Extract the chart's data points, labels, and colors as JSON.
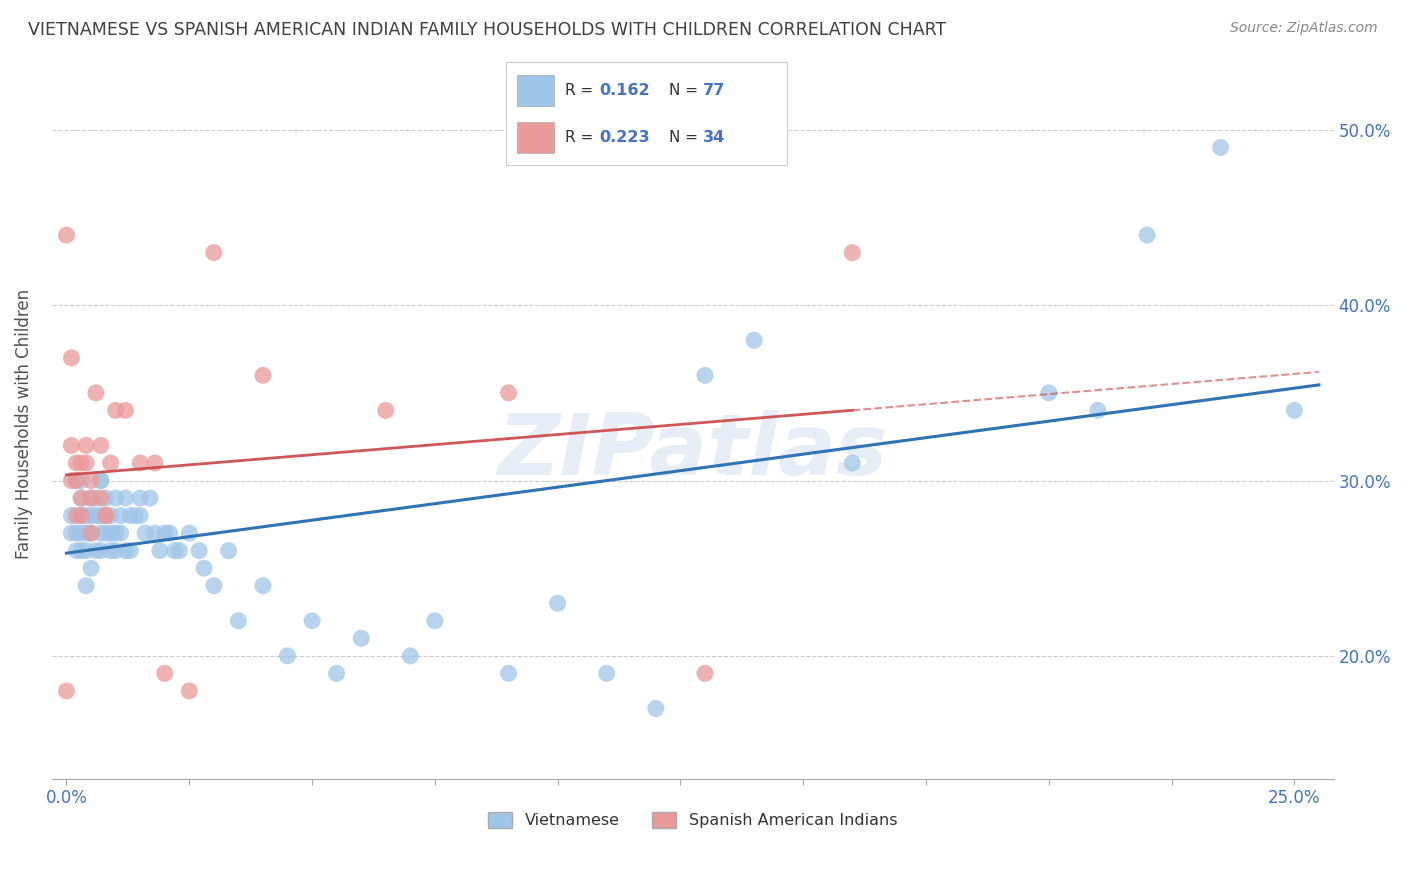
{
  "title": "VIETNAMESE VS SPANISH AMERICAN INDIAN FAMILY HOUSEHOLDS WITH CHILDREN CORRELATION CHART",
  "source": "Source: ZipAtlas.com",
  "ylabel": "Family Households with Children",
  "watermark": "ZIPatlas",
  "right_ytick_labels": [
    "20.0%",
    "30.0%",
    "40.0%",
    "50.0%"
  ],
  "right_yticks": [
    0.2,
    0.3,
    0.4,
    0.5
  ],
  "xtick_labels_shown": [
    "0.0%",
    "25.0%"
  ],
  "xticks_shown": [
    0.0,
    0.25
  ],
  "xticks_minor": [
    0.025,
    0.05,
    0.075,
    0.1,
    0.125,
    0.15,
    0.175,
    0.2,
    0.225
  ],
  "xlim": [
    -0.003,
    0.258
  ],
  "ylim": [
    0.13,
    0.535
  ],
  "blue_color": "#9fc5e8",
  "pink_color": "#ea9999",
  "blue_line_color": "#2e74b5",
  "pink_line_color": "#cc4444",
  "title_color": "#404040",
  "axis_label_color": "#4472c4",
  "grid_color": "#cccccc",
  "background_color": "#ffffff",
  "legend_blue_label": "R = 0.162   N = 77",
  "legend_pink_label": "R = 0.223   N = 34",
  "bottom_legend": [
    "Vietnamese",
    "Spanish American Indians"
  ],
  "vietnamese_x": [
    0.001,
    0.001,
    0.002,
    0.002,
    0.002,
    0.003,
    0.003,
    0.003,
    0.003,
    0.003,
    0.004,
    0.004,
    0.004,
    0.004,
    0.005,
    0.005,
    0.005,
    0.005,
    0.006,
    0.006,
    0.006,
    0.007,
    0.007,
    0.007,
    0.007,
    0.007,
    0.008,
    0.008,
    0.008,
    0.009,
    0.009,
    0.009,
    0.01,
    0.01,
    0.01,
    0.011,
    0.011,
    0.012,
    0.012,
    0.013,
    0.013,
    0.014,
    0.015,
    0.015,
    0.016,
    0.017,
    0.018,
    0.019,
    0.02,
    0.021,
    0.022,
    0.023,
    0.025,
    0.027,
    0.028,
    0.03,
    0.033,
    0.035,
    0.04,
    0.045,
    0.05,
    0.055,
    0.06,
    0.07,
    0.075,
    0.09,
    0.1,
    0.11,
    0.12,
    0.13,
    0.14,
    0.16,
    0.2,
    0.21,
    0.22,
    0.235,
    0.25
  ],
  "vietnamese_y": [
    0.28,
    0.27,
    0.3,
    0.27,
    0.26,
    0.3,
    0.28,
    0.26,
    0.29,
    0.27,
    0.28,
    0.27,
    0.26,
    0.24,
    0.29,
    0.28,
    0.27,
    0.25,
    0.29,
    0.28,
    0.26,
    0.3,
    0.28,
    0.27,
    0.26,
    0.3,
    0.29,
    0.28,
    0.27,
    0.28,
    0.27,
    0.26,
    0.29,
    0.27,
    0.26,
    0.28,
    0.27,
    0.29,
    0.26,
    0.28,
    0.26,
    0.28,
    0.29,
    0.28,
    0.27,
    0.29,
    0.27,
    0.26,
    0.27,
    0.27,
    0.26,
    0.26,
    0.27,
    0.26,
    0.25,
    0.24,
    0.26,
    0.22,
    0.24,
    0.2,
    0.22,
    0.19,
    0.21,
    0.2,
    0.22,
    0.19,
    0.23,
    0.19,
    0.17,
    0.36,
    0.38,
    0.31,
    0.35,
    0.34,
    0.44,
    0.49,
    0.34
  ],
  "spanish_x": [
    0.0,
    0.0,
    0.001,
    0.001,
    0.001,
    0.002,
    0.002,
    0.002,
    0.003,
    0.003,
    0.003,
    0.004,
    0.004,
    0.005,
    0.005,
    0.005,
    0.006,
    0.007,
    0.007,
    0.008,
    0.008,
    0.009,
    0.01,
    0.012,
    0.015,
    0.018,
    0.02,
    0.025,
    0.03,
    0.04,
    0.065,
    0.09,
    0.13,
    0.16
  ],
  "spanish_y": [
    0.18,
    0.44,
    0.3,
    0.32,
    0.37,
    0.28,
    0.3,
    0.31,
    0.28,
    0.31,
    0.29,
    0.31,
    0.32,
    0.27,
    0.3,
    0.29,
    0.35,
    0.29,
    0.32,
    0.28,
    0.28,
    0.31,
    0.34,
    0.34,
    0.31,
    0.31,
    0.19,
    0.18,
    0.43,
    0.36,
    0.34,
    0.35,
    0.19,
    0.43
  ]
}
